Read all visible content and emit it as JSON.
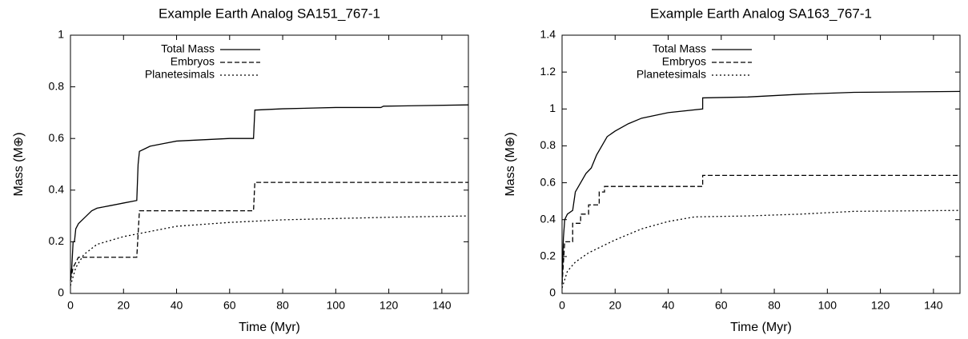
{
  "chart_data": [
    {
      "type": "line",
      "title": "Example Earth Analog SA151_767-1",
      "x_label": "Time (Myr)",
      "y_label": "Mass (M⊕)",
      "xlim": [
        0,
        150
      ],
      "ylim": [
        0,
        1
      ],
      "xticks": [
        0,
        20,
        40,
        60,
        80,
        100,
        120,
        140
      ],
      "yticks": [
        0,
        0.2,
        0.4,
        0.6,
        0.8,
        1
      ],
      "legend": "upper-left",
      "series": [
        {
          "name": "Total Mass",
          "color": "#000000",
          "dash": "solid",
          "x": [
            0,
            0.5,
            1,
            1.5,
            2,
            3,
            5,
            8,
            10,
            15,
            20,
            25,
            25.5,
            26,
            28,
            30,
            35,
            40,
            50,
            60,
            69,
            69.5,
            80,
            100,
            117,
            118,
            150
          ],
          "values": [
            0.05,
            0.1,
            0.2,
            0.2,
            0.25,
            0.27,
            0.29,
            0.32,
            0.33,
            0.34,
            0.35,
            0.36,
            0.5,
            0.55,
            0.56,
            0.57,
            0.58,
            0.59,
            0.595,
            0.6,
            0.6,
            0.71,
            0.715,
            0.72,
            0.72,
            0.725,
            0.73
          ]
        },
        {
          "name": "Embryos",
          "color": "#000000",
          "dash": "dashed",
          "x": [
            0,
            1,
            3,
            25,
            26,
            69,
            69.5,
            150
          ],
          "values": [
            0.05,
            0.1,
            0.14,
            0.14,
            0.32,
            0.32,
            0.43,
            0.43
          ]
        },
        {
          "name": "Planetesimals",
          "color": "#000000",
          "dash": "dotted",
          "x": [
            0,
            2,
            5,
            10,
            20,
            30,
            40,
            60,
            80,
            100,
            120,
            150
          ],
          "values": [
            0.03,
            0.1,
            0.15,
            0.19,
            0.22,
            0.24,
            0.26,
            0.275,
            0.285,
            0.29,
            0.295,
            0.3
          ]
        }
      ]
    },
    {
      "type": "line",
      "title": "Example Earth Analog SA163_767-1",
      "x_label": "Time (Myr)",
      "y_label": "Mass (M⊕)",
      "xlim": [
        0,
        150
      ],
      "ylim": [
        0,
        1.4
      ],
      "xticks": [
        0,
        20,
        40,
        60,
        80,
        100,
        120,
        140
      ],
      "yticks": [
        0,
        0.2,
        0.4,
        0.6,
        0.8,
        1,
        1.2,
        1.4
      ],
      "legend": "upper-left",
      "series": [
        {
          "name": "Total Mass",
          "color": "#000000",
          "dash": "solid",
          "x": [
            0,
            0.5,
            1,
            2,
            4,
            5,
            7,
            9,
            11,
            13,
            15,
            17,
            20,
            25,
            30,
            40,
            53,
            53,
            70,
            90,
            110,
            150
          ],
          "values": [
            0.05,
            0.3,
            0.4,
            0.43,
            0.45,
            0.55,
            0.6,
            0.65,
            0.68,
            0.75,
            0.8,
            0.85,
            0.88,
            0.92,
            0.95,
            0.98,
            1.0,
            1.06,
            1.065,
            1.08,
            1.09,
            1.095
          ]
        },
        {
          "name": "Embryos",
          "color": "#000000",
          "dash": "dashed",
          "x": [
            0,
            1,
            4,
            4,
            7,
            7,
            10,
            10,
            14,
            14,
            16,
            16,
            53,
            53,
            150
          ],
          "values": [
            0.05,
            0.28,
            0.28,
            0.38,
            0.38,
            0.43,
            0.43,
            0.48,
            0.48,
            0.55,
            0.55,
            0.58,
            0.58,
            0.64,
            0.64
          ]
        },
        {
          "name": "Planetesimals",
          "color": "#000000",
          "dash": "dotted",
          "x": [
            0,
            2,
            5,
            10,
            20,
            30,
            40,
            50,
            70,
            90,
            110,
            150
          ],
          "values": [
            0.03,
            0.12,
            0.17,
            0.22,
            0.29,
            0.35,
            0.39,
            0.415,
            0.42,
            0.43,
            0.445,
            0.45
          ]
        }
      ]
    }
  ]
}
